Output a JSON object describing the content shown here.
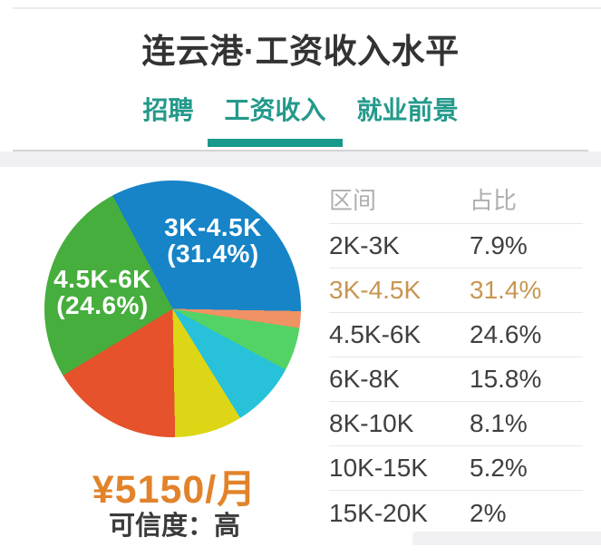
{
  "page": {
    "title": "连云港·工资收入水平"
  },
  "tabs": {
    "active_index": 1,
    "items": [
      {
        "label": "招聘"
      },
      {
        "label": "工资收入"
      },
      {
        "label": "就业前景"
      }
    ]
  },
  "pie_labels": {
    "slice1_line1": "3K-4.5K",
    "slice1_line2": "(31.4%)",
    "slice2_line1": "4.5K-6K",
    "slice2_line2": "(24.6%)"
  },
  "summary": {
    "salary": "¥5150/月",
    "confidence": "可信度：高"
  },
  "table": {
    "header": {
      "range": "区间",
      "share": "占比"
    },
    "rows": [
      {
        "range": "2K-3K",
        "share": "7.9%",
        "highlight": false
      },
      {
        "range": "3K-4.5K",
        "share": "31.4%",
        "highlight": true
      },
      {
        "range": "4.5K-6K",
        "share": "24.6%",
        "highlight": false
      },
      {
        "range": "6K-8K",
        "share": "15.8%",
        "highlight": false
      },
      {
        "range": "8K-10K",
        "share": "8.1%",
        "highlight": false
      },
      {
        "range": "10K-15K",
        "share": "5.2%",
        "highlight": false
      },
      {
        "range": "15K-20K",
        "share": "2%",
        "highlight": false
      }
    ]
  },
  "chart_data": {
    "type": "pie",
    "title": "连云港·工资收入水平",
    "start_angle_deg": -28,
    "direction": "clockwise",
    "slices": [
      {
        "label": "3K-4.5K",
        "value": 31.4,
        "color": "#1684c7"
      },
      {
        "label": "15K-20K",
        "value": 2,
        "color": "#f09263"
      },
      {
        "label": "10K-15K",
        "value": 5.2,
        "color": "#53d366"
      },
      {
        "label": "2K-3K",
        "value": 7.9,
        "color": "#27c2d9"
      },
      {
        "label": "8K-10K",
        "value": 8.1,
        "color": "#ddd616"
      },
      {
        "label": "6K-8K",
        "value": 15.8,
        "color": "#e5522b"
      },
      {
        "label": "4.5K-6K",
        "value": 24.6,
        "color": "#46ae3c"
      }
    ],
    "center_summary": "¥5150/月",
    "confidence": "可信度：高"
  },
  "colors": {
    "tab_teal": "#23998b",
    "tab_underline": "#18998a",
    "title_text": "#333333",
    "table_header_gray": "#aeaeae",
    "table_row_text": "#3f3f3f",
    "highlight_orange": "#c8964f",
    "salary_orange": "#e2832b",
    "separator": "#e7e7e7",
    "band_gray": "#f0f0f3"
  }
}
